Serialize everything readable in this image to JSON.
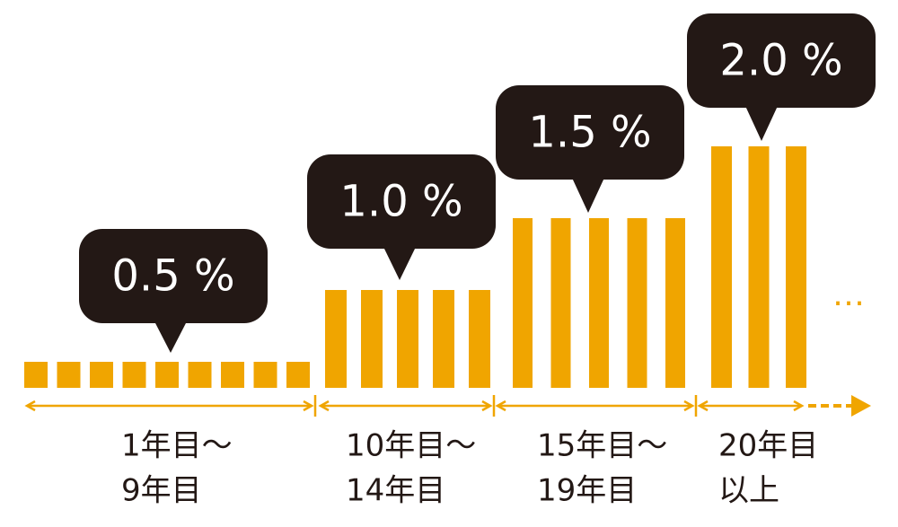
{
  "chart_data": {
    "type": "bar",
    "color": "#f0a500",
    "bubble_color": "#231815",
    "groups": [
      {
        "label": [
          "1年目〜",
          "9年目"
        ],
        "values": [
          0.5,
          0.5,
          0.5,
          0.5,
          0.5,
          0.5,
          0.5,
          0.5,
          0.5
        ],
        "value_label": "0.5 %"
      },
      {
        "label": [
          "10年目〜",
          "14年目"
        ],
        "values": [
          1.0,
          1.0,
          1.0,
          1.0,
          1.0
        ],
        "value_label": "1.0 %"
      },
      {
        "label": [
          "15年目〜",
          "19年目"
        ],
        "values": [
          1.5,
          1.5,
          1.5,
          1.5,
          1.5
        ],
        "value_label": "1.5 %"
      },
      {
        "label": [
          "20年目",
          "以上"
        ],
        "values": [
          2.0,
          2.0,
          2.0
        ],
        "value_label": "2.0 %"
      }
    ],
    "continuation": "…"
  }
}
